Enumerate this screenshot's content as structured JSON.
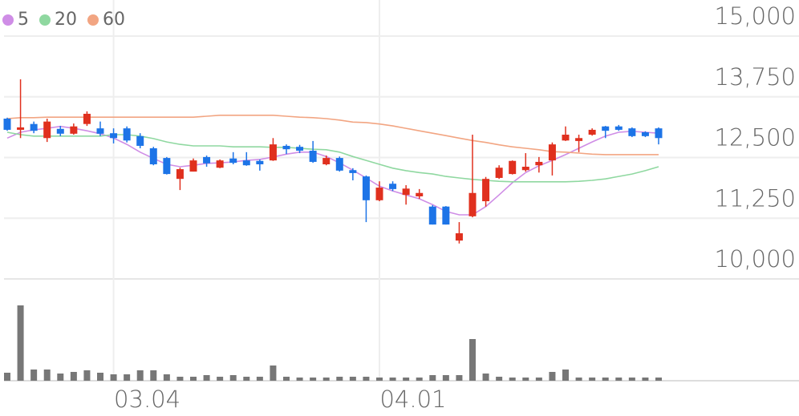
{
  "chart_data": {
    "type": "candlestick",
    "categories": [
      null,
      null,
      null,
      null,
      null,
      null,
      null,
      null,
      "03.04",
      null,
      null,
      null,
      null,
      null,
      null,
      null,
      null,
      null,
      null,
      null,
      null,
      null,
      null,
      null,
      null,
      null,
      null,
      null,
      "04.01",
      null,
      null,
      null,
      null,
      null,
      null,
      null,
      null,
      null,
      null,
      null,
      null,
      null,
      null,
      null,
      null,
      null,
      null,
      null,
      null,
      null
    ],
    "open": [
      13300,
      13070,
      13190,
      12900,
      13090,
      12990,
      13190,
      13100,
      13000,
      13100,
      12940,
      12690,
      12490,
      12060,
      12210,
      12510,
      12290,
      12480,
      12440,
      12430,
      12440,
      12740,
      12720,
      12640,
      12360,
      12490,
      12240,
      12110,
      11620,
      11960,
      11730,
      11700,
      11490,
      11490,
      10790,
      11290,
      11600,
      12080,
      12160,
      12240,
      12340,
      12440,
      12850,
      12840,
      12970,
      13140,
      13140,
      13100,
      13020,
      13100
    ],
    "high": [
      13320,
      14110,
      13240,
      13300,
      13150,
      13200,
      13450,
      13240,
      13100,
      13140,
      13000,
      12720,
      12510,
      12290,
      12480,
      12540,
      12460,
      12610,
      12610,
      12460,
      12900,
      12770,
      12760,
      12840,
      12540,
      12520,
      12280,
      12130,
      12010,
      12010,
      11930,
      11850,
      11520,
      11500,
      11170,
      12970,
      12100,
      12340,
      12440,
      12590,
      12510,
      12810,
      13140,
      12970,
      13100,
      13150,
      13170,
      13120,
      13040,
      13120
    ],
    "low": [
      13050,
      12900,
      13000,
      12820,
      12940,
      12970,
      13150,
      12940,
      12790,
      12810,
      12690,
      12340,
      12150,
      11830,
      12210,
      12310,
      12280,
      12360,
      12330,
      12230,
      12430,
      12570,
      12590,
      12390,
      12340,
      12210,
      12030,
      11170,
      11600,
      11810,
      11530,
      11650,
      11120,
      11120,
      10730,
      11270,
      11490,
      12060,
      12150,
      12210,
      12190,
      12130,
      12840,
      12610,
      12950,
      12900,
      13050,
      12920,
      12920,
      12770
    ],
    "close": [
      13070,
      13120,
      13050,
      13240,
      12990,
      13140,
      13400,
      12990,
      12900,
      12850,
      12740,
      12360,
      12160,
      12260,
      12440,
      12380,
      12440,
      12390,
      12340,
      12360,
      12770,
      12670,
      12640,
      12410,
      12490,
      12230,
      12180,
      11620,
      11880,
      11850,
      11860,
      11770,
      11120,
      11120,
      10940,
      11770,
      12060,
      12290,
      12430,
      12310,
      12410,
      12770,
      12970,
      12900,
      13070,
      13050,
      13070,
      12940,
      12940,
      12900
    ],
    "up_color": "#e0301e",
    "down_color": "#1d74e7",
    "series": [
      {
        "name": "5",
        "color": "#cf8de6",
        "values": [
          12900,
          13020,
          13070,
          13100,
          13140,
          13100,
          13050,
          12990,
          12900,
          12770,
          12610,
          12480,
          12360,
          12310,
          12340,
          12380,
          12390,
          12410,
          12440,
          12460,
          12510,
          12570,
          12610,
          12610,
          12520,
          12390,
          12240,
          12080,
          11910,
          11810,
          11730,
          11650,
          11530,
          11390,
          11320,
          11320,
          11490,
          11730,
          11980,
          12190,
          12330,
          12440,
          12560,
          12690,
          12820,
          12940,
          13020,
          13040,
          13020,
          13000
        ]
      },
      {
        "name": "20",
        "color": "#8fd8a0",
        "values": [
          13020,
          12970,
          12940,
          12940,
          12940,
          12940,
          12940,
          12940,
          12970,
          12970,
          12940,
          12890,
          12820,
          12770,
          12740,
          12740,
          12740,
          12720,
          12720,
          12720,
          12710,
          12710,
          12690,
          12670,
          12660,
          12610,
          12520,
          12440,
          12360,
          12280,
          12230,
          12190,
          12160,
          12110,
          12080,
          12050,
          12030,
          12010,
          12000,
          12000,
          12000,
          12000,
          12000,
          12010,
          12030,
          12060,
          12110,
          12160,
          12230,
          12310
        ]
      },
      {
        "name": "60",
        "color": "#f2a582",
        "values": [
          13300,
          13320,
          13320,
          13330,
          13330,
          13330,
          13330,
          13330,
          13330,
          13330,
          13330,
          13330,
          13330,
          13330,
          13330,
          13350,
          13370,
          13370,
          13370,
          13370,
          13370,
          13350,
          13330,
          13320,
          13300,
          13270,
          13230,
          13220,
          13190,
          13150,
          13100,
          13050,
          13000,
          12950,
          12900,
          12850,
          12810,
          12760,
          12720,
          12690,
          12660,
          12620,
          12610,
          12590,
          12570,
          12560,
          12560,
          12560,
          12560,
          12560
        ]
      }
    ],
    "ylim": [
      10000,
      15000
    ],
    "yticks": [
      {
        "value": 10000,
        "label": "10,000"
      },
      {
        "value": 11250,
        "label": "11,250"
      },
      {
        "value": 12500,
        "label": "12,500"
      },
      {
        "value": 13750,
        "label": "13,750"
      },
      {
        "value": 15000,
        "label": "15,000"
      }
    ],
    "grid": true,
    "volume": {
      "color": "#777777",
      "ylim": [
        0,
        125
      ],
      "values": [
        10,
        94,
        14,
        14,
        9,
        11,
        13,
        10,
        8,
        8,
        13,
        13,
        8,
        5,
        5,
        7,
        5,
        7,
        5,
        5,
        19,
        5,
        4,
        4,
        4,
        5,
        5,
        5,
        4,
        4,
        4,
        4,
        7,
        7,
        7,
        52,
        9,
        5,
        4,
        4,
        4,
        11,
        14,
        4,
        4,
        4,
        4,
        4,
        4,
        4
      ]
    }
  }
}
